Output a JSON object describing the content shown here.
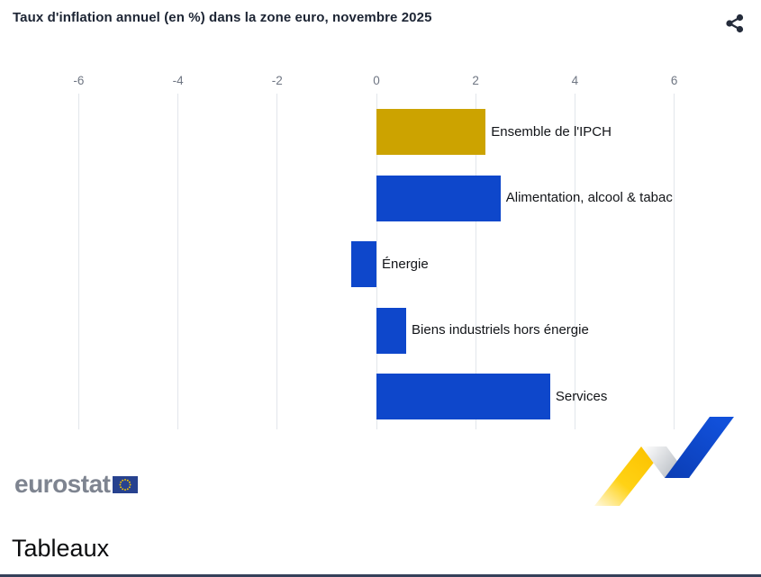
{
  "header": {
    "title": "Taux d'inflation annuel (en %) dans la zone euro, novembre 2025"
  },
  "chart_data": {
    "type": "bar",
    "orientation": "horizontal",
    "title": "Taux d'inflation annuel (en %) dans la zone euro, novembre 2025",
    "categories": [
      "Ensemble de l'IPCH",
      "Alimentation, alcool & tabac",
      "Énergie",
      "Biens industriels hors énergie",
      "Services"
    ],
    "values": [
      2.2,
      2.5,
      -0.5,
      0.6,
      3.5
    ],
    "bar_colors": [
      "#CCA300",
      "#0E47CB",
      "#0E47CB",
      "#0E47CB",
      "#0E47CB"
    ],
    "x_ticks": [
      -6,
      -4,
      -2,
      0,
      2,
      4,
      6
    ],
    "xlim": [
      -6,
      6
    ],
    "unit": "%",
    "grid": true,
    "legend": false
  },
  "footer": {
    "logo_text": "eurostat",
    "section_heading": "Tableaux"
  },
  "colors": {
    "accent_blue": "#0E47CB",
    "accent_gold": "#CCA300",
    "grid": "#E2E6EB",
    "title_text": "#1D2534",
    "tick_text": "#6F7683",
    "logo_gray": "#7E8490",
    "flag_blue": "#27428F",
    "flag_stars": "#F3C500",
    "ribbon_yellow": "#FFCC00",
    "ribbon_gray": "#C2C5CA",
    "share_icon": "#252C3B"
  }
}
